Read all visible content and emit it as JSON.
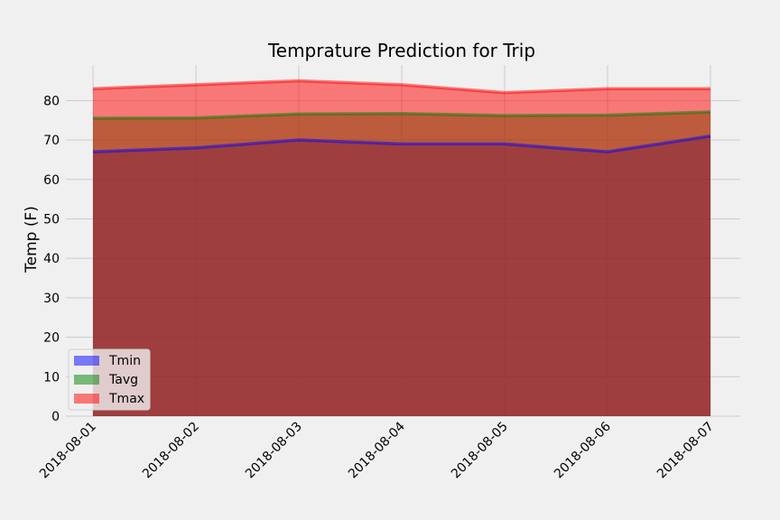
{
  "chart_data": {
    "type": "area",
    "title": "Temprature Prediction for Trip",
    "xlabel": "",
    "ylabel": "Temp (F)",
    "categories": [
      "2018-08-01",
      "2018-08-02",
      "2018-08-03",
      "2018-08-04",
      "2018-08-05",
      "2018-08-06",
      "2018-08-07"
    ],
    "series": [
      {
        "name": "Tmin",
        "color": "#0000ff",
        "values": [
          67,
          68,
          70,
          69,
          69,
          67,
          71
        ]
      },
      {
        "name": "Tavg",
        "color": "#008000",
        "values": [
          75.5,
          75.6,
          76.6,
          76.7,
          76.2,
          76.3,
          77.1
        ]
      },
      {
        "name": "Tmax",
        "color": "#ff0000",
        "values": [
          83,
          84,
          85,
          84,
          82,
          83,
          83
        ]
      }
    ],
    "ylim": [
      0,
      89
    ],
    "yticks": [
      0,
      10,
      20,
      30,
      40,
      50,
      60,
      70,
      80
    ],
    "grid": true,
    "stacked": false,
    "legend_position": "lower-left"
  }
}
